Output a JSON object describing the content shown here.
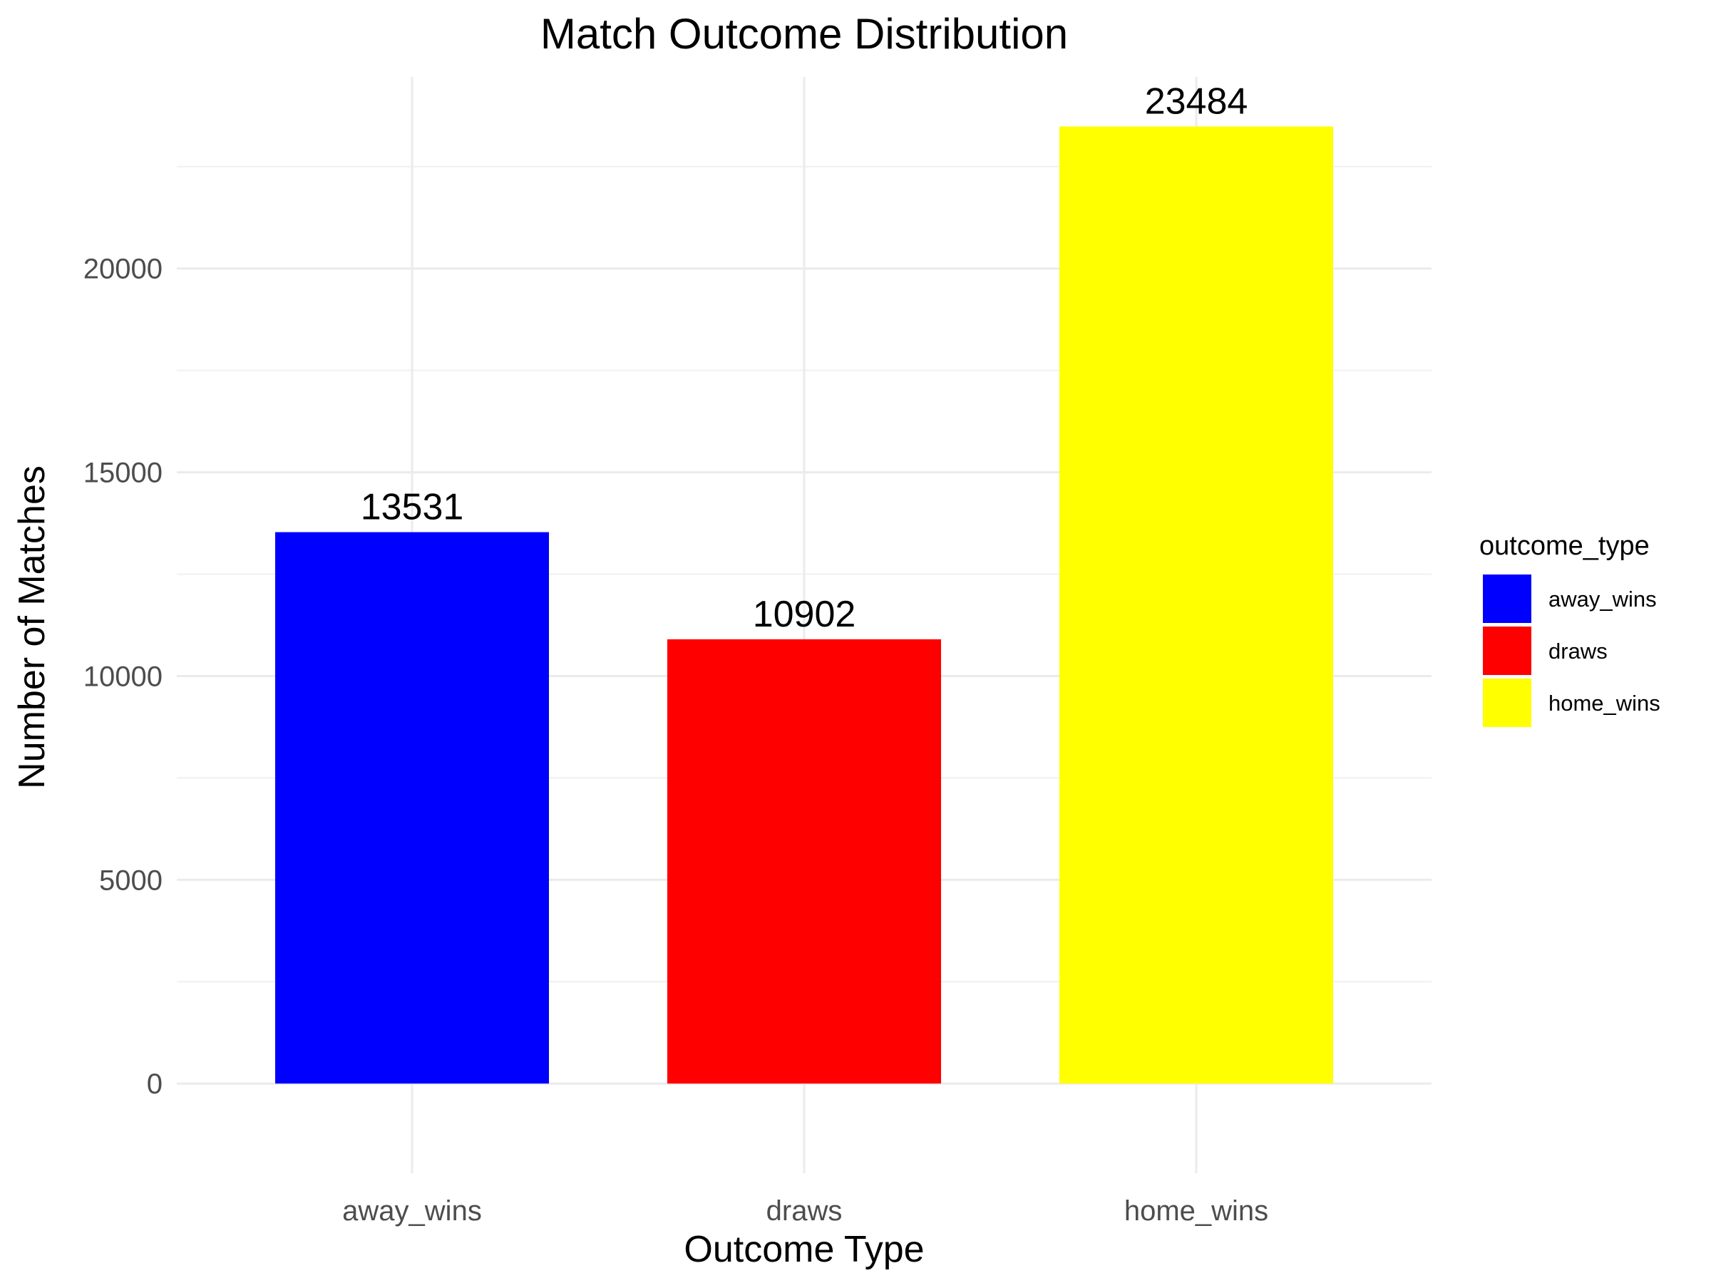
{
  "chart_data": {
    "type": "bar",
    "title": "Match Outcome Distribution",
    "xlabel": "Outcome Type",
    "ylabel": "Number of Matches",
    "categories": [
      "away_wins",
      "draws",
      "home_wins"
    ],
    "values": [
      13531,
      10902,
      23484
    ],
    "data_labels": [
      "13531",
      "10902",
      "23484"
    ],
    "colors": [
      "#0000ff",
      "#ff0000",
      "#ffff00"
    ],
    "ylim": [
      -2200,
      24700
    ],
    "yticks": [
      0,
      5000,
      10000,
      15000,
      20000
    ],
    "ytick_labels": [
      "0",
      "5000",
      "10000",
      "15000",
      "20000"
    ],
    "grid": true,
    "legend": {
      "title": "outcome_type",
      "position": "right",
      "entries": [
        "away_wins",
        "draws",
        "home_wins"
      ]
    }
  }
}
